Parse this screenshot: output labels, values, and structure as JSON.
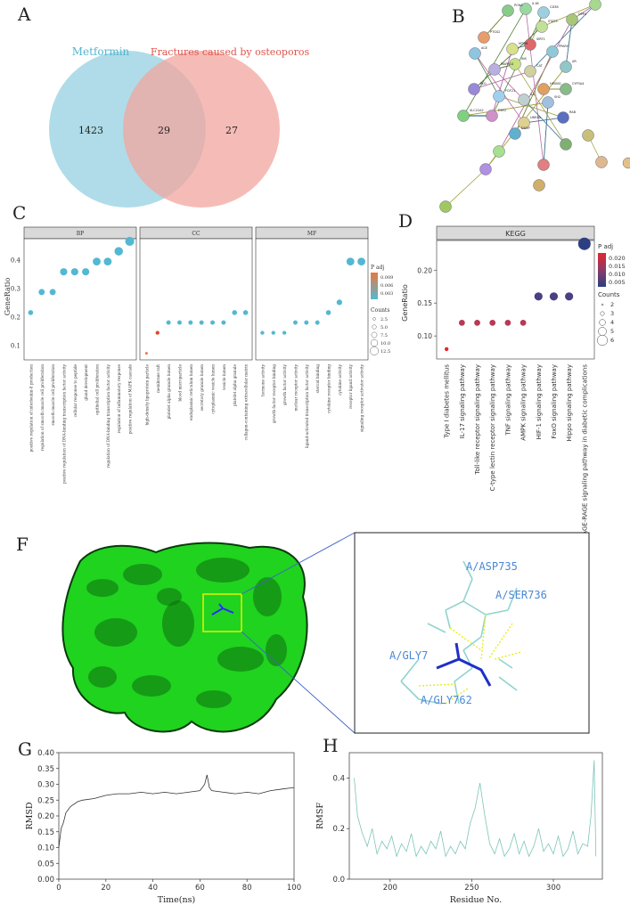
{
  "panel_labels": [
    "A",
    "B",
    "C",
    "D",
    "F",
    "G",
    "H"
  ],
  "venn": {
    "left_label": "Metformin",
    "right_label": "Fractures caused by osteoporos",
    "left_only": "1423",
    "overlap": "29",
    "right_only": "27",
    "left_color": "#a6d8e5",
    "right_color": "#f2a69f",
    "left_text_color": "#52b5d1",
    "right_text_color": "#e0534a"
  },
  "network": {
    "nodes": [
      "PCNA",
      "IL1B",
      "CD38",
      "DPP4",
      "PPARA",
      "PTGS2",
      "ACE",
      "STAT3",
      "MTOR",
      "SIRT1",
      "PPARG",
      "MAPK14",
      "INS",
      "CAT",
      "AR",
      "HMGB1",
      "PLG",
      "FGF21",
      "IL2",
      "SH2",
      "CYP3A4",
      "ESR1",
      "SLC22A2",
      "UBE4B",
      "RAB",
      "DUSP"
    ]
  },
  "chart_data": [
    {
      "type": "scatter",
      "panel": "C",
      "facets": [
        "BP",
        "CC",
        "MF"
      ],
      "ylabel": "GeneRatio",
      "yticks": [
        "0.1",
        "0.2",
        "0.3",
        "0.4"
      ],
      "ylim": [
        0.07,
        0.47
      ],
      "legend_title_color": "P adj",
      "legend_color_ticks": [
        "0.009",
        "0.006",
        "0.003"
      ],
      "legend_title_size": "Counts",
      "legend_size_ticks": [
        "2.5",
        "5.0",
        "7.5",
        "10.0",
        "12.5"
      ],
      "facet_data": [
        {
          "name": "BP",
          "categories": [
            "positive regulation of interleukin-8 production",
            "regulation of smooth muscle cell proliferation",
            "smooth muscle cell proliferation",
            "positive regulation of DNA-binding transcription factor activity",
            "cellular response to peptide",
            "gland development",
            "epithelial cell proliferation",
            "regulation of DNA-binding transcription factor activity",
            "regulation of inflammatory response",
            "positive regulation of MAPK cascade"
          ],
          "values": [
            0.214,
            0.286,
            0.286,
            0.357,
            0.357,
            0.357,
            0.393,
            0.393,
            0.429,
            0.464
          ]
        },
        {
          "name": "CC",
          "categories": [
            "high-density lipoprotein particle",
            "membrane raft",
            "platelet alpha granule lumen",
            "blood microparticle",
            "endoplasmic reticulum lumen",
            "secretory granule lumen",
            "cytoplasmic vesicle lumen",
            "vesicle lumen",
            "platelet alpha granule",
            "collagen-containing extracellular matrix"
          ],
          "values": [
            0.071,
            0.143,
            0.179,
            0.179,
            0.179,
            0.179,
            0.179,
            0.179,
            0.214,
            0.214
          ]
        },
        {
          "name": "MF",
          "categories": [
            "hormone activity",
            "growth factor receptor binding",
            "growth factor activity",
            "nuclear receptor activity",
            "ligand-activated transcription factor activity",
            "steroid binding",
            "cytokine receptor binding",
            "cytokine activity",
            "receptor ligand activity",
            "signaling receptor activator activity"
          ],
          "values": [
            0.143,
            0.143,
            0.143,
            0.179,
            0.179,
            0.179,
            0.214,
            0.25,
            0.393,
            0.393
          ]
        }
      ]
    },
    {
      "type": "scatter",
      "panel": "D",
      "facet_title": "KEGG",
      "ylabel": "GeneRatio",
      "yticks": [
        "0.10",
        "0.15",
        "0.20"
      ],
      "ylim": [
        0.065,
        0.245
      ],
      "categories": [
        "Type I diabetes mellitus",
        "IL-17 signaling pathway",
        "Toll-like receptor signaling pathway",
        "C-type lectin receptor signaling pathway",
        "TNF signaling pathway",
        "AMPK signaling pathway",
        "HIF-1 signaling pathway",
        "FoxO signaling pathway",
        "Hippo signaling pathway",
        "AGE-RAGE signaling pathway in diabetic complications"
      ],
      "values": [
        0.08,
        0.12,
        0.12,
        0.12,
        0.12,
        0.12,
        0.16,
        0.16,
        0.16,
        0.24
      ],
      "counts": [
        2,
        3,
        3,
        3,
        3,
        3,
        4,
        4,
        4,
        6
      ],
      "legend_title_color": "P adj",
      "legend_color_ticks": [
        "0.020",
        "0.015",
        "0.010",
        "0.005"
      ],
      "legend_title_size": "Counts",
      "legend_size_ticks": [
        "2",
        "3",
        "4",
        "5",
        "6"
      ]
    },
    {
      "type": "line",
      "panel": "G",
      "xlabel": "Time(ns)",
      "ylabel": "RMSD",
      "xticks": [
        "0",
        "20",
        "40",
        "60",
        "80",
        "100"
      ],
      "yticks": [
        "0.00",
        "0.05",
        "0.10",
        "0.15",
        "0.20",
        "0.25",
        "0.30",
        "0.35",
        "0.40"
      ],
      "xlim": [
        0,
        100
      ],
      "ylim": [
        0,
        0.4
      ],
      "series": [
        {
          "x": [
            0,
            1,
            2,
            3,
            5,
            8,
            10,
            15,
            20,
            25,
            30,
            35,
            40,
            45,
            50,
            55,
            60,
            62,
            63,
            64,
            65,
            70,
            75,
            80,
            85,
            90,
            95,
            100
          ],
          "y": [
            0.1,
            0.16,
            0.18,
            0.21,
            0.23,
            0.245,
            0.25,
            0.255,
            0.265,
            0.27,
            0.27,
            0.275,
            0.27,
            0.275,
            0.27,
            0.275,
            0.28,
            0.3,
            0.33,
            0.29,
            0.28,
            0.275,
            0.27,
            0.275,
            0.27,
            0.28,
            0.285,
            0.29
          ]
        }
      ]
    },
    {
      "type": "line",
      "panel": "H",
      "xlabel": "Residue No.",
      "ylabel": "RMSF",
      "xticks": [
        "200",
        "250",
        "300"
      ],
      "yticks": [
        "0.0",
        "0.2",
        "0.4"
      ],
      "xlim": [
        175,
        330
      ],
      "ylim": [
        0,
        0.5
      ],
      "series": [
        {
          "x": [
            178,
            180,
            183,
            186,
            189,
            192,
            195,
            198,
            201,
            204,
            207,
            210,
            213,
            216,
            219,
            222,
            225,
            228,
            231,
            234,
            237,
            240,
            243,
            246,
            249,
            252,
            255,
            258,
            261,
            264,
            267,
            270,
            273,
            276,
            279,
            282,
            285,
            288,
            291,
            294,
            297,
            300,
            303,
            306,
            309,
            312,
            315,
            318,
            321,
            323,
            325,
            326
          ],
          "y": [
            0.4,
            0.25,
            0.18,
            0.13,
            0.2,
            0.1,
            0.15,
            0.12,
            0.17,
            0.09,
            0.14,
            0.11,
            0.18,
            0.09,
            0.13,
            0.1,
            0.15,
            0.12,
            0.19,
            0.09,
            0.13,
            0.1,
            0.15,
            0.12,
            0.22,
            0.28,
            0.38,
            0.25,
            0.14,
            0.1,
            0.16,
            0.09,
            0.12,
            0.18,
            0.1,
            0.15,
            0.09,
            0.13,
            0.2,
            0.11,
            0.14,
            0.1,
            0.17,
            0.09,
            0.12,
            0.19,
            0.1,
            0.14,
            0.13,
            0.25,
            0.47,
            0.09
          ]
        }
      ]
    }
  ],
  "docking": {
    "residues": [
      "A/ASP735",
      "A/SER736",
      "A/GLY7",
      "A/GLY762"
    ],
    "protein_color": "#1fd31f",
    "highlight_color": "#e8f000",
    "connector_color": "#3f63c7"
  }
}
